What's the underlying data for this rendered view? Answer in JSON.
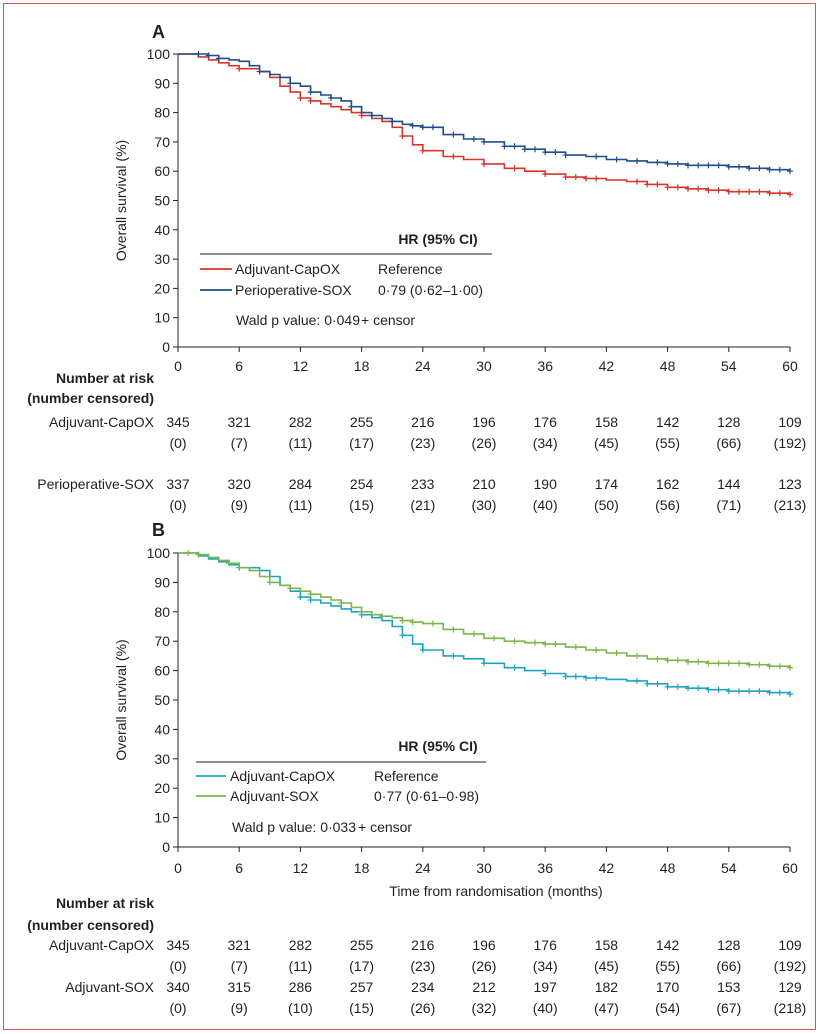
{
  "chart_data": [
    {
      "type": "line",
      "panel_label": "A",
      "ylabel": "Overall survival (%)",
      "xlabel": "",
      "x_ticks": [
        0,
        6,
        12,
        18,
        24,
        30,
        36,
        42,
        48,
        54,
        60
      ],
      "y_ticks": [
        0,
        10,
        20,
        30,
        40,
        50,
        60,
        70,
        80,
        90,
        100
      ],
      "xlim": [
        0,
        60
      ],
      "ylim": [
        0,
        100
      ],
      "grid": false,
      "legend": {
        "header": "HR (95% CI)",
        "placement": "bottom-left",
        "entries": [
          {
            "label": "Adjuvant-CapOX",
            "hr": "Reference"
          },
          {
            "label": "Perioperative-SOX",
            "hr": "0·79 (0·62–1·00)"
          }
        ],
        "wald": "Wald p value: 0·049",
        "censor": "+ censor"
      },
      "series": [
        {
          "name": "Adjuvant-CapOX",
          "color": "#d7342b",
          "x": [
            0,
            2,
            3,
            4,
            5,
            6,
            7,
            8,
            9,
            10,
            11,
            12,
            13,
            14,
            15,
            16,
            17,
            18,
            19,
            20,
            21,
            22,
            23,
            24,
            26,
            28,
            30,
            32,
            34,
            36,
            38,
            40,
            42,
            44,
            46,
            48,
            50,
            52,
            54,
            56,
            58,
            60
          ],
          "y": [
            100,
            99,
            98,
            97,
            96,
            95,
            95,
            94,
            92,
            89,
            87,
            85,
            84,
            83,
            82,
            81,
            80,
            79,
            78,
            77,
            75,
            72,
            69,
            67,
            65,
            64,
            62.5,
            61,
            60,
            59,
            58,
            57.5,
            57,
            56.5,
            55.5,
            54.5,
            54,
            53.5,
            53,
            53,
            52.5,
            52
          ],
          "censor_x": [
            6,
            12,
            13,
            18,
            22,
            24,
            27,
            30,
            33,
            36,
            38,
            39,
            40,
            41,
            45,
            46,
            47,
            48,
            49,
            50,
            51,
            52,
            53,
            54,
            55,
            56,
            57,
            58,
            59,
            60
          ]
        },
        {
          "name": "Perioperative-SOX",
          "color": "#1f4e8c",
          "x": [
            0,
            2,
            3,
            4,
            5,
            6,
            7,
            8,
            9,
            10,
            11,
            12,
            13,
            14,
            15,
            16,
            17,
            18,
            19,
            20,
            21,
            22,
            23,
            24,
            26,
            28,
            30,
            32,
            34,
            36,
            38,
            40,
            42,
            44,
            46,
            48,
            50,
            52,
            54,
            56,
            58,
            60
          ],
          "y": [
            100,
            100,
            99.5,
            98.5,
            98,
            97.5,
            96,
            94,
            93,
            92,
            90,
            89,
            87,
            86,
            85,
            84,
            82,
            80,
            79,
            78,
            77,
            76,
            75.5,
            75,
            72.5,
            71,
            70,
            68.5,
            67.5,
            66.5,
            65.5,
            65,
            64,
            63.5,
            63,
            62.5,
            62,
            62,
            61.5,
            61,
            60.5,
            60
          ],
          "censor_x": [
            2,
            3,
            4,
            8,
            11,
            13,
            15,
            17,
            19,
            21,
            23,
            24,
            25,
            27,
            29,
            30,
            32,
            33,
            34,
            35,
            36,
            37,
            38,
            41,
            43,
            45,
            47,
            48,
            49,
            50,
            51,
            52,
            53,
            54,
            55,
            56,
            57,
            58,
            59,
            60
          ]
        }
      ],
      "risk_table": {
        "title_line1": "Number at risk",
        "title_line2": "(number censored)",
        "rows": [
          {
            "label": "Adjuvant-CapOX",
            "at_risk": [
              "345",
              "321",
              "282",
              "255",
              "216",
              "196",
              "176",
              "158",
              "142",
              "128",
              "109"
            ],
            "censored": [
              "(0)",
              "(7)",
              "(11)",
              "(17)",
              "(23)",
              "(26)",
              "(34)",
              "(45)",
              "(55)",
              "(66)",
              "(192)"
            ]
          },
          {
            "label": "Perioperative-SOX",
            "at_risk": [
              "337",
              "320",
              "284",
              "254",
              "233",
              "210",
              "190",
              "174",
              "162",
              "144",
              "123"
            ],
            "censored": [
              "(0)",
              "(9)",
              "(11)",
              "(15)",
              "(21)",
              "(30)",
              "(40)",
              "(50)",
              "(56)",
              "(71)",
              "(213)"
            ]
          }
        ]
      }
    },
    {
      "type": "line",
      "panel_label": "B",
      "ylabel": "Overall survival (%)",
      "xlabel": "Time from randomisation (months)",
      "x_ticks": [
        0,
        6,
        12,
        18,
        24,
        30,
        36,
        42,
        48,
        54,
        60
      ],
      "y_ticks": [
        0,
        10,
        20,
        30,
        40,
        50,
        60,
        70,
        80,
        90,
        100
      ],
      "xlim": [
        0,
        60
      ],
      "ylim": [
        0,
        100
      ],
      "grid": false,
      "legend": {
        "header": "HR (95% CI)",
        "placement": "bottom-left",
        "entries": [
          {
            "label": "Adjuvant-CapOX",
            "hr": "Reference"
          },
          {
            "label": "Adjuvant-SOX",
            "hr": "0·77 (0·61–0·98)"
          }
        ],
        "wald": "Wald p value: 0·033",
        "censor": "+ censor"
      },
      "series": [
        {
          "name": "Adjuvant-CapOX",
          "color": "#1fa3c4",
          "x": [
            0,
            2,
            3,
            4,
            5,
            6,
            7,
            8,
            9,
            10,
            11,
            12,
            13,
            14,
            15,
            16,
            17,
            18,
            19,
            20,
            21,
            22,
            23,
            24,
            26,
            28,
            30,
            32,
            34,
            36,
            38,
            40,
            42,
            44,
            46,
            48,
            50,
            52,
            54,
            56,
            58,
            60
          ],
          "y": [
            100,
            99,
            98,
            97,
            96,
            95,
            95,
            94,
            92,
            89,
            87,
            85,
            84,
            83,
            82,
            81,
            80,
            79,
            78,
            77,
            75,
            72,
            69,
            67,
            65,
            64,
            62.5,
            61,
            60,
            59,
            58,
            57.5,
            57,
            56.5,
            55.5,
            54.5,
            54,
            53.5,
            53,
            53,
            52.5,
            52
          ],
          "censor_x": [
            6,
            12,
            13,
            18,
            22,
            24,
            27,
            30,
            33,
            36,
            38,
            39,
            40,
            41,
            45,
            46,
            47,
            48,
            49,
            50,
            51,
            52,
            53,
            54,
            55,
            56,
            57,
            58,
            59,
            60
          ]
        },
        {
          "name": "Adjuvant-SOX",
          "color": "#7ab648",
          "x": [
            0,
            2,
            3,
            4,
            5,
            6,
            7,
            8,
            9,
            10,
            11,
            12,
            13,
            14,
            15,
            16,
            17,
            18,
            19,
            20,
            21,
            22,
            23,
            24,
            26,
            28,
            30,
            32,
            34,
            36,
            38,
            40,
            42,
            44,
            46,
            48,
            50,
            52,
            54,
            56,
            58,
            60
          ],
          "y": [
            100,
            99.5,
            98.5,
            97.5,
            96.5,
            95,
            94,
            92,
            90,
            89,
            88,
            87,
            86,
            85,
            84,
            83,
            81.5,
            80,
            79,
            78.5,
            78,
            77,
            76.5,
            76,
            74,
            72.5,
            71,
            70,
            69.5,
            69,
            68,
            67,
            66,
            65,
            64,
            63.5,
            63,
            62.5,
            62.5,
            62,
            61.5,
            61
          ],
          "censor_x": [
            1,
            2,
            5,
            9,
            11,
            13,
            16,
            18,
            20,
            22,
            23,
            25,
            27,
            29,
            31,
            33,
            35,
            36,
            37,
            39,
            41,
            43,
            45,
            47,
            48,
            49,
            50,
            51,
            52,
            53,
            54,
            55,
            56,
            57,
            58,
            59,
            60
          ]
        }
      ],
      "risk_table": {
        "title_line1": "Number at risk",
        "title_line2": "(number censored)",
        "rows": [
          {
            "label": "Adjuvant-CapOX",
            "at_risk": [
              "345",
              "321",
              "282",
              "255",
              "216",
              "196",
              "176",
              "158",
              "142",
              "128",
              "109"
            ],
            "censored": [
              "(0)",
              "(7)",
              "(11)",
              "(17)",
              "(23)",
              "(26)",
              "(34)",
              "(45)",
              "(55)",
              "(66)",
              "(192)"
            ]
          },
          {
            "label": "Adjuvant-SOX",
            "at_risk": [
              "340",
              "315",
              "286",
              "257",
              "234",
              "212",
              "197",
              "182",
              "170",
              "153",
              "129"
            ],
            "censored": [
              "(0)",
              "(9)",
              "(10)",
              "(15)",
              "(26)",
              "(32)",
              "(40)",
              "(47)",
              "(54)",
              "(67)",
              "(218)"
            ]
          }
        ]
      }
    }
  ]
}
